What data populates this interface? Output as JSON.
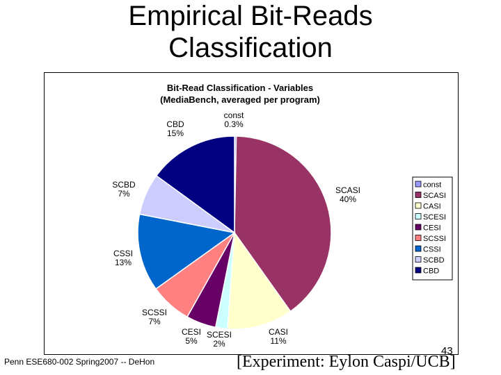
{
  "slide": {
    "title_line1": "Empirical Bit-Reads",
    "title_line2": "Classification",
    "footer": "Penn ESE680-002 Spring2007 -- DeHon",
    "slide_number": "43",
    "citation": "[Experiment: Eylon Caspi/UCB]"
  },
  "chart_data": {
    "type": "pie",
    "title": [
      "Bit-Read Classification - Variables",
      "(MediaBench, averaged per program)"
    ],
    "legend_position": "right",
    "slices": [
      {
        "name": "const",
        "value": 0.3,
        "label": "0.3%",
        "color": "#9999ff"
      },
      {
        "name": "SCASI",
        "value": 40,
        "label": "40%",
        "color": "#993366"
      },
      {
        "name": "CASI",
        "value": 11,
        "label": "11%",
        "color": "#ffffcc"
      },
      {
        "name": "SCESI",
        "value": 2,
        "label": "2%",
        "color": "#ccffff"
      },
      {
        "name": "CESI",
        "value": 5,
        "label": "5%",
        "color": "#660066"
      },
      {
        "name": "SCSSI",
        "value": 7,
        "label": "7%",
        "color": "#ff8080"
      },
      {
        "name": "CSSI",
        "value": 13,
        "label": "13%",
        "color": "#0066cc"
      },
      {
        "name": "SCBD",
        "value": 7,
        "label": "7%",
        "color": "#ccccff"
      },
      {
        "name": "CBD",
        "value": 15,
        "label": "15%",
        "color": "#000080"
      }
    ]
  }
}
